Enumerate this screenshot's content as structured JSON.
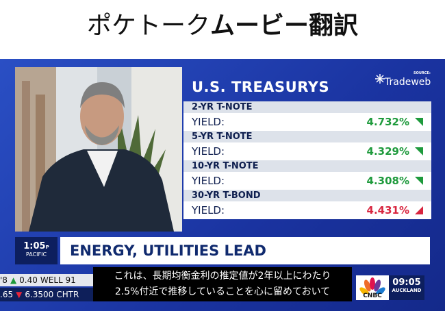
{
  "header": {
    "title_light": "ポケトーク",
    "title_bold": "ムービー翻訳"
  },
  "panel": {
    "title": "U.S. TREASURYS",
    "source_label": "SOURCE:",
    "source": "Tradeweb",
    "rows": [
      {
        "name": "2-YR T-NOTE",
        "label": "YIELD:",
        "value": "4.732%",
        "direction": "up"
      },
      {
        "name": "5-YR T-NOTE",
        "label": "YIELD:",
        "value": "4.329%",
        "direction": "up"
      },
      {
        "name": "10-YR T-NOTE",
        "label": "YIELD:",
        "value": "4.308%",
        "direction": "up"
      },
      {
        "name": "30-YR T-BOND",
        "label": "YIELD:",
        "value": "4.431%",
        "direction": "down"
      }
    ]
  },
  "clock": {
    "time": "1:05",
    "suffix": "P",
    "zone": "PACIFIC"
  },
  "headline": "ENERGY, UTILITIES LEAD",
  "ticker": {
    "rows": [
      [
        "'8",
        "0.40",
        "WELL 91"
      ],
      [
        ".65",
        "6.3500",
        "CHTR"
      ]
    ]
  },
  "subtitles": [
    "これは、長期均衡金利の推定値が2年以上にわたり",
    "2.5%付近で推移していることを心に留めておいて"
  ],
  "network": {
    "logo": "CNBC",
    "time": "09:05",
    "city": "AUCKLAND"
  }
}
